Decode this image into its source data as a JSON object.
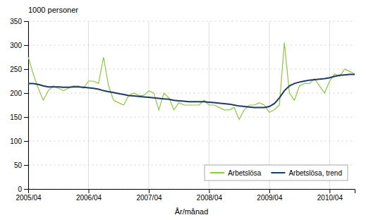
{
  "chart_data": {
    "type": "line",
    "ylabel": "1000 personer",
    "xlabel": "År/månad",
    "categories": [
      "2005/04",
      null,
      null,
      null,
      null,
      null,
      null,
      null,
      null,
      null,
      null,
      null,
      "2006/04",
      null,
      null,
      null,
      null,
      null,
      null,
      null,
      null,
      null,
      null,
      null,
      "2007/04",
      null,
      null,
      null,
      null,
      null,
      null,
      null,
      null,
      null,
      null,
      null,
      "2008/04",
      null,
      null,
      null,
      null,
      null,
      null,
      null,
      null,
      null,
      null,
      null,
      "2009/04",
      null,
      null,
      null,
      null,
      null,
      null,
      null,
      null,
      null,
      null,
      null,
      "2010/04",
      null,
      null,
      null,
      null,
      null
    ],
    "series": [
      {
        "name": "Arbetslösa",
        "color": "#8dc63f",
        "values": [
          275,
          240,
          210,
          185,
          205,
          215,
          210,
          205,
          210,
          215,
          215,
          210,
          225,
          225,
          220,
          275,
          215,
          185,
          180,
          175,
          195,
          200,
          195,
          195,
          205,
          200,
          165,
          200,
          190,
          165,
          180,
          175,
          175,
          175,
          175,
          185,
          175,
          175,
          170,
          165,
          165,
          170,
          145,
          165,
          175,
          175,
          180,
          175,
          160,
          165,
          175,
          305,
          200,
          185,
          215,
          220,
          220,
          230,
          215,
          200,
          225,
          240,
          235,
          250,
          245,
          240
        ]
      },
      {
        "name": "Arbetslösa, trend",
        "color": "#1f3864",
        "values": [
          220,
          220,
          218,
          215,
          213,
          213,
          213,
          212,
          212,
          213,
          213,
          212,
          211,
          210,
          208,
          205,
          203,
          201,
          199,
          197,
          195,
          194,
          193,
          192,
          191,
          190,
          189,
          188,
          187,
          185,
          184,
          183,
          182,
          182,
          182,
          182,
          181,
          180,
          179,
          178,
          177,
          175,
          173,
          172,
          171,
          170,
          170,
          170,
          172,
          178,
          190,
          205,
          215,
          220,
          223,
          225,
          227,
          228,
          229,
          230,
          232,
          235,
          237,
          238,
          239,
          239
        ]
      }
    ],
    "ylim": [
      0,
      350
    ],
    "yticks": [
      0,
      50,
      100,
      150,
      200,
      250,
      300,
      350
    ],
    "grid": true,
    "legend": "lower right"
  }
}
